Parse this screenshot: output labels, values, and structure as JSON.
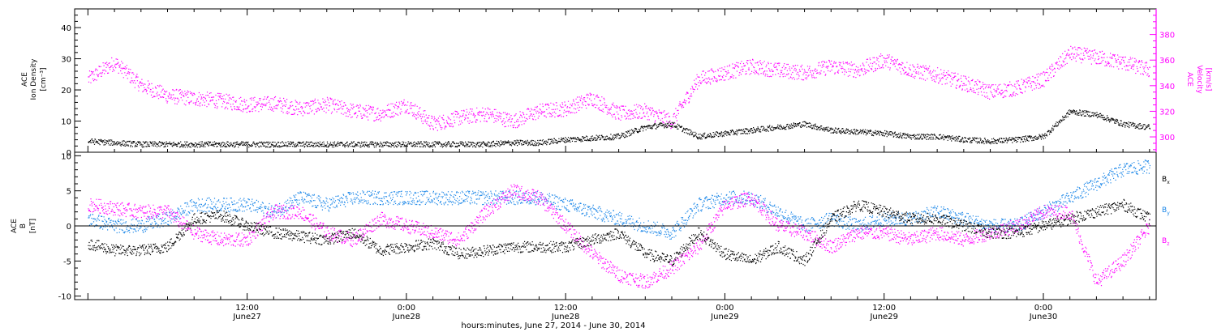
{
  "chart_data": [
    {
      "type": "scatter",
      "panel": "top",
      "ylabel_left": [
        "ACE",
        "Ion Density",
        "[cm⁻³]"
      ],
      "ylabel_right": [
        "ACE",
        "Velocity",
        "[km/s]"
      ],
      "ylim_left": [
        0,
        46
      ],
      "ylim_right": [
        288,
        400
      ],
      "yticks_left": [
        "0",
        "10",
        "20",
        "30",
        "40"
      ],
      "yticks_right": [
        "300",
        "320",
        "340",
        "360",
        "380"
      ],
      "xlim": [
        "2014-06-27T00:00",
        "2014-06-30T08:00"
      ],
      "grid": false,
      "series": [
        {
          "name": "ACE Ion Density",
          "axis": "left",
          "color": "#000000",
          "unit": "cm^-3",
          "x_hours": [
            0,
            2,
            4,
            6,
            8,
            10,
            12,
            14,
            16,
            18,
            20,
            22,
            24,
            26,
            28,
            30,
            32,
            34,
            36,
            38,
            40,
            42,
            44,
            46,
            48,
            50,
            52,
            54,
            56,
            58,
            60,
            62,
            64,
            66,
            68,
            70,
            72,
            74,
            76,
            78,
            80
          ],
          "values": [
            3.5,
            3,
            2.5,
            2.5,
            2.5,
            2.5,
            2.5,
            2.5,
            2.5,
            2.5,
            2.5,
            2.5,
            2.5,
            2.5,
            2.5,
            2.5,
            3,
            3,
            4,
            4.5,
            5,
            8,
            9,
            5,
            6,
            7,
            8,
            9,
            7,
            6.5,
            6,
            5,
            5,
            4,
            3.5,
            4,
            5,
            13,
            12,
            9,
            8
          ]
        },
        {
          "name": "ACE Velocity",
          "axis": "right",
          "color": "#ff00ff",
          "unit": "km/s",
          "x_hours": [
            0,
            2,
            4,
            6,
            8,
            10,
            12,
            14,
            16,
            18,
            20,
            22,
            24,
            26,
            28,
            30,
            32,
            34,
            36,
            38,
            40,
            42,
            44,
            46,
            48,
            50,
            52,
            54,
            56,
            58,
            60,
            62,
            64,
            66,
            68,
            70,
            72,
            74,
            76,
            78,
            80
          ],
          "values": [
            345,
            358,
            340,
            332,
            330,
            328,
            325,
            326,
            322,
            325,
            320,
            318,
            325,
            310,
            315,
            318,
            312,
            320,
            322,
            330,
            318,
            320,
            312,
            345,
            350,
            355,
            352,
            350,
            355,
            352,
            360,
            352,
            348,
            342,
            335,
            338,
            345,
            365,
            362,
            358,
            352
          ]
        }
      ]
    },
    {
      "type": "scatter",
      "panel": "bottom",
      "ylabel_left": [
        "ACE",
        "B",
        "[nT]"
      ],
      "ylim_left": [
        -10.5,
        10.5
      ],
      "yticks_left": [
        "-10",
        "-5",
        "0",
        "5",
        "10"
      ],
      "xlim": [
        "2014-06-27T00:00",
        "2014-06-30T08:00"
      ],
      "grid": false,
      "zero_line": true,
      "legend": [
        "Bx",
        "By",
        "Bz"
      ],
      "legend_position": "right",
      "series": [
        {
          "name": "Bx",
          "color": "#000000",
          "x_hours": [
            0,
            2,
            4,
            6,
            8,
            10,
            12,
            14,
            16,
            18,
            20,
            22,
            24,
            26,
            28,
            30,
            32,
            34,
            36,
            38,
            40,
            42,
            44,
            46,
            48,
            50,
            52,
            54,
            56,
            58,
            60,
            62,
            64,
            66,
            68,
            70,
            72,
            74,
            76,
            78,
            80
          ],
          "values": [
            -2.5,
            -3.5,
            -3.5,
            -3,
            1,
            1.5,
            0,
            -1,
            -1.5,
            -2,
            -1,
            -3.5,
            -3,
            -2.5,
            -4,
            -3.5,
            -3,
            -3,
            -3,
            -2,
            -1,
            -4,
            -5,
            -1,
            -4,
            -5,
            -3,
            -5,
            1,
            3,
            2,
            1,
            1,
            0,
            -1,
            -1,
            0,
            1,
            2,
            3,
            1
          ]
        },
        {
          "name": "By",
          "color": "#1a86e8",
          "x_hours": [
            0,
            2,
            4,
            6,
            8,
            10,
            12,
            14,
            16,
            18,
            20,
            22,
            24,
            26,
            28,
            30,
            32,
            34,
            36,
            38,
            40,
            42,
            44,
            46,
            48,
            50,
            52,
            54,
            56,
            58,
            60,
            62,
            64,
            66,
            68,
            70,
            72,
            74,
            76,
            78,
            80
          ],
          "values": [
            1,
            0,
            0,
            1,
            3,
            3,
            3,
            2,
            4,
            3,
            4,
            4,
            4,
            4,
            4,
            4,
            4,
            4,
            3,
            2,
            1,
            0,
            -1,
            3,
            4,
            4,
            2,
            0,
            1,
            0,
            1,
            1,
            2,
            1,
            0,
            0,
            2,
            4,
            6,
            8,
            8.5
          ]
        },
        {
          "name": "Bz",
          "color": "#ff00ff",
          "x_hours": [
            0,
            2,
            4,
            6,
            8,
            10,
            12,
            14,
            16,
            18,
            20,
            22,
            24,
            26,
            28,
            30,
            32,
            34,
            36,
            38,
            40,
            42,
            44,
            46,
            48,
            50,
            52,
            54,
            56,
            58,
            60,
            62,
            64,
            66,
            68,
            70,
            72,
            74,
            76,
            78,
            80
          ],
          "values": [
            3,
            2.5,
            2,
            2,
            -1,
            -2,
            -2,
            2,
            2,
            -1,
            -2,
            1,
            0,
            -1,
            -2,
            2,
            5,
            4,
            0,
            -4,
            -7,
            -8,
            -6,
            -3,
            3,
            4,
            0,
            -1,
            -3,
            -1,
            -1,
            -2,
            -1,
            -2,
            -1,
            0,
            2,
            2,
            -8,
            -5,
            0
          ]
        }
      ]
    }
  ],
  "x_axis": {
    "tick_times": [
      "12:00",
      "0:00",
      "12:00",
      "0:00",
      "12:00",
      "0:00"
    ],
    "tick_dates": [
      "June27",
      "June28",
      "June28",
      "June29",
      "June29",
      "June30"
    ],
    "tick_hours": [
      12,
      24,
      36,
      48,
      60,
      72
    ],
    "label": "hours:minutes, June 27, 2014 - June 30, 2014"
  },
  "legend": {
    "bx": "B",
    "bx_sub": "x",
    "by": "B",
    "by_sub": "y",
    "bz": "B",
    "bz_sub": "z"
  },
  "colors": {
    "density": "#000000",
    "velocity": "#ff00ff",
    "bx": "#000000",
    "by": "#1a86e8",
    "bz": "#ff00ff"
  }
}
